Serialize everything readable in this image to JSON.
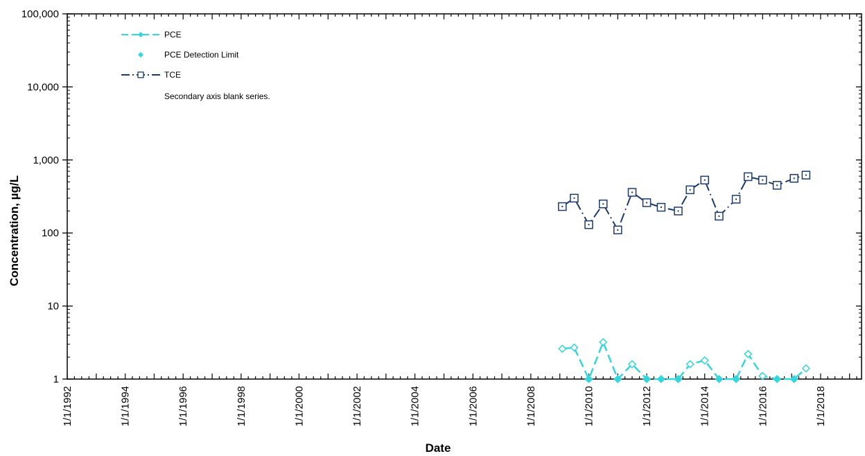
{
  "chart_data": {
    "type": "line",
    "xlabel": "Date",
    "ylabel": "Concentration, µg/L",
    "y_scale": "log",
    "ylim": [
      1,
      100000
    ],
    "xlim": [
      "1992-01-01",
      "2019-06-01"
    ],
    "x_tick_labels": [
      "1/1/1992",
      "1/1/1994",
      "1/1/1996",
      "1/1/1998",
      "1/1/2000",
      "1/1/2002",
      "1/1/2004",
      "1/1/2006",
      "1/1/2008",
      "1/1/2010",
      "1/1/2012",
      "1/1/2014",
      "1/1/2016",
      "1/1/2018"
    ],
    "y_tick_labels": [
      "1",
      "10",
      "100",
      "1,000",
      "10,000",
      "100,000"
    ],
    "legend": {
      "placement": "top-left",
      "entries": [
        "PCE",
        "PCE Detection Limit",
        "TCE",
        "Secondary axis blank series."
      ]
    },
    "colors": {
      "pce": "#33d6dc",
      "tce": "#1a3a6c"
    },
    "series": [
      {
        "name": "PCE",
        "x": [
          "2009-02-01",
          "2009-07-01",
          "2010-01-01",
          "2010-07-01",
          "2011-01-01",
          "2011-07-01",
          "2012-01-01",
          "2012-07-01",
          "2013-02-01",
          "2013-07-01",
          "2014-01-01",
          "2014-07-01",
          "2015-02-01",
          "2015-07-01",
          "2016-01-01",
          "2016-07-01",
          "2017-02-01",
          "2017-07-01"
        ],
        "y": [
          2.6,
          2.7,
          1.0,
          3.2,
          1.0,
          1.6,
          1.0,
          1.0,
          1.0,
          1.6,
          1.8,
          1.0,
          1.0,
          2.2,
          1.1,
          1.0,
          1.0,
          1.4
        ]
      },
      {
        "name": "PCE Detection Limit",
        "x": [
          "2010-01-01",
          "2011-01-01",
          "2012-01-01",
          "2012-07-01",
          "2013-02-01",
          "2014-07-01",
          "2015-02-01",
          "2016-07-01",
          "2017-02-01"
        ],
        "y": [
          1,
          1,
          1,
          1,
          1,
          1,
          1,
          1,
          1
        ]
      },
      {
        "name": "TCE",
        "x": [
          "2009-02-01",
          "2009-07-01",
          "2010-01-01",
          "2010-07-01",
          "2011-01-01",
          "2011-07-01",
          "2012-01-01",
          "2012-07-01",
          "2013-02-01",
          "2013-07-01",
          "2014-01-01",
          "2014-07-01",
          "2015-02-01",
          "2015-07-01",
          "2016-01-01",
          "2016-07-01",
          "2017-02-01",
          "2017-07-01"
        ],
        "y": [
          230,
          300,
          130,
          250,
          110,
          360,
          260,
          225,
          200,
          390,
          530,
          170,
          290,
          590,
          530,
          450,
          560,
          620
        ]
      }
    ]
  }
}
